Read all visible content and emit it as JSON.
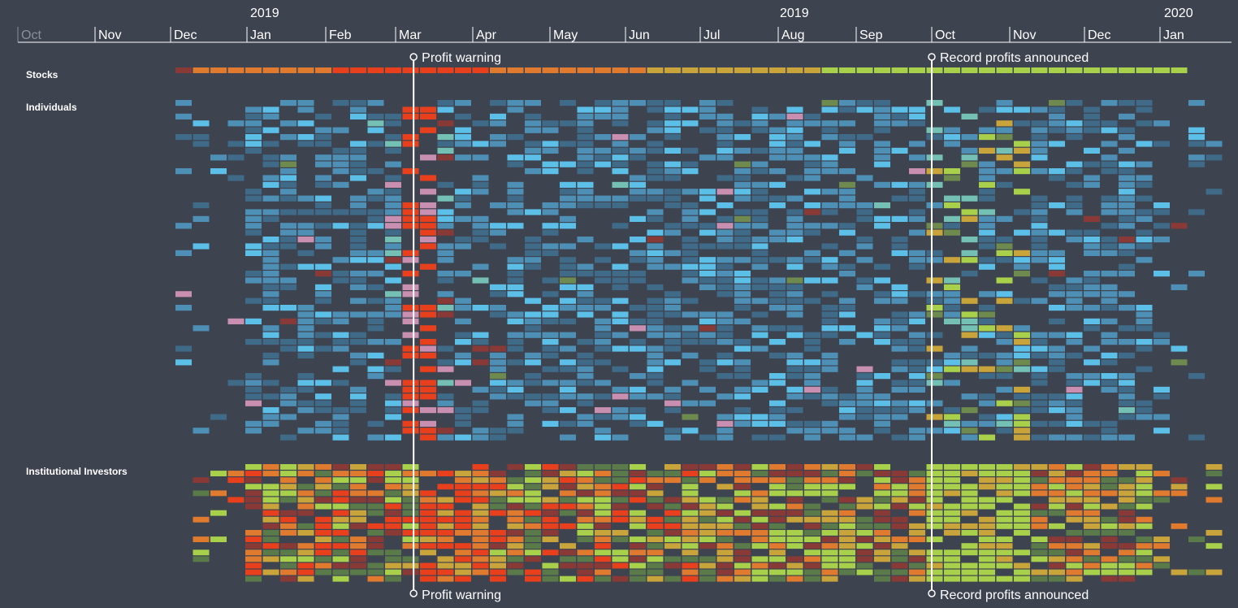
{
  "chart_data": {
    "type": "heatmap",
    "title": "",
    "time_axis": {
      "year_labels": [
        {
          "label": "2019",
          "month": "2018-12"
        },
        {
          "label": "2019",
          "month": "2019-07"
        },
        {
          "label": "2020",
          "month": "2019-12"
        }
      ],
      "months": [
        {
          "label": "Oct",
          "start": "2018-10",
          "dim": true
        },
        {
          "label": "Nov",
          "start": "2018-11"
        },
        {
          "label": "Dec",
          "start": "2018-12"
        },
        {
          "label": "Jan",
          "start": "2019-01"
        },
        {
          "label": "Feb",
          "start": "2019-02"
        },
        {
          "label": "Mar",
          "start": "2019-03"
        },
        {
          "label": "Apr",
          "start": "2019-04"
        },
        {
          "label": "May",
          "start": "2019-05"
        },
        {
          "label": "Jun",
          "start": "2019-06"
        },
        {
          "label": "Jul",
          "start": "2019-07"
        },
        {
          "label": "Aug",
          "start": "2019-08"
        },
        {
          "label": "Sep",
          "start": "2019-09"
        },
        {
          "label": "Oct",
          "start": "2019-10"
        },
        {
          "label": "Nov",
          "start": "2019-11"
        },
        {
          "label": "Dec",
          "start": "2019-12"
        },
        {
          "label": "Jan",
          "start": "2020-01"
        }
      ]
    },
    "rows": [
      {
        "name": "Stocks",
        "kind": "single"
      },
      {
        "name": "Individuals",
        "kind": "individuals",
        "count": 50
      },
      {
        "name": "Institutional Investors",
        "kind": "institutions",
        "count": 18
      }
    ],
    "annotations": [
      {
        "label": "Profit warning",
        "date": "2019-03-08"
      },
      {
        "label": "Record profits announced",
        "date": "2019-10-01"
      }
    ],
    "colors": {
      "background": "#3e4350",
      "strongly_negative": "#e8401c",
      "negative": "#e07a2e",
      "neutral_warm": "#c9a43a",
      "positive": "#a8d04a",
      "neutral_muted": "#5a7a4a",
      "dark_red": "#8a3a36",
      "blue_dark": "#3f6a88",
      "blue_mid": "#4e8fb6",
      "blue_light": "#5bbfe8",
      "pink": "#c88fb0",
      "teal": "#74c0b4",
      "olive": "#6e8a4e"
    }
  }
}
